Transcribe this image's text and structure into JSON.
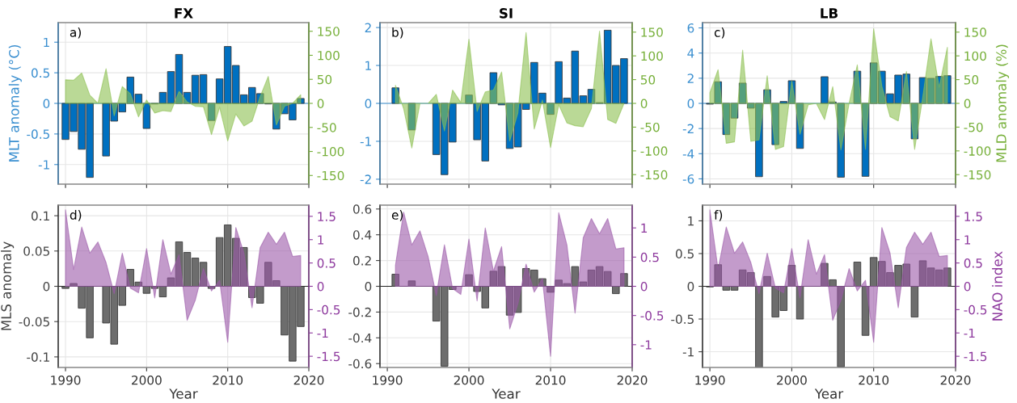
{
  "chart_data": [
    {
      "type": "bar",
      "title": "FX",
      "ylabel": "MLT anomaly (°C)",
      "annotations": [
        "a)"
      ],
      "grid": true,
      "tick_labels": "y",
      "ref_lines": [
        {
          "axis": "y",
          "value": 0,
          "color": "#3a8fd0"
        }
      ],
      "x": [
        1990,
        1991,
        1992,
        1993,
        1994,
        1995,
        1996,
        1997,
        1998,
        1999,
        2000,
        2001,
        2002,
        2003,
        2004,
        2005,
        2006,
        2007,
        2008,
        2009,
        2010,
        2011,
        2012,
        2013,
        2014,
        2015,
        2016,
        2017,
        2018,
        2019
      ],
      "xlim": [
        1989.1,
        2020
      ],
      "xticks": [
        1990,
        2000,
        2010,
        2020
      ],
      "ylim": [
        -1.32,
        1.32
      ],
      "yticks": [
        -1,
        -0.5,
        0,
        0.5,
        1
      ],
      "y2lim": [
        -168,
        168
      ],
      "y2ticks": [
        -150,
        -100,
        -50,
        0,
        50,
        100,
        150
      ],
      "series": [
        {
          "color": "#0070c0",
          "values": [
            -0.59,
            -0.46,
            -0.75,
            -1.21,
            null,
            -0.86,
            -0.29,
            -0.14,
            0.43,
            0.15,
            -0.41,
            -0.01,
            0.18,
            0.52,
            0.8,
            0.18,
            0.46,
            0.47,
            -0.28,
            0.4,
            0.93,
            0.62,
            0.14,
            0.26,
            0.16,
            -0.01,
            -0.42,
            -0.17,
            -0.27,
            0.08
          ]
        },
        {
          "type": "area",
          "axis": "y2",
          "color": "#8cbf50",
          "values": [
            49,
            48,
            63,
            17,
            0,
            72,
            -26,
            35,
            20,
            -28,
            7,
            -20,
            -15,
            -17,
            25,
            3,
            -6,
            -7,
            -65,
            -8,
            -78,
            -22,
            -47,
            -37,
            14,
            56,
            -45,
            -6,
            0,
            18
          ]
        }
      ]
    },
    {
      "type": "bar",
      "title": "SI",
      "annotations": [
        "b)"
      ],
      "grid": true,
      "tick_labels": "y",
      "ref_lines": [
        {
          "axis": "y",
          "value": 0,
          "color": "#3a8fd0"
        }
      ],
      "x": [
        1991,
        1992,
        1993,
        1994,
        1995,
        1996,
        1997,
        1998,
        1999,
        2000,
        2001,
        2002,
        2003,
        2004,
        2005,
        2006,
        2007,
        2008,
        2009,
        2010,
        2011,
        2012,
        2013,
        2014,
        2015,
        2016,
        2017,
        2018,
        2019
      ],
      "xlim": [
        1989.1,
        2020
      ],
      "xticks": [
        1990,
        2000,
        2010,
        2020
      ],
      "ylim": [
        -2.13,
        2.13
      ],
      "yticks": [
        -2,
        -1,
        0,
        1,
        2
      ],
      "y2lim": [
        -170,
        170
      ],
      "y2ticks": [
        -150,
        -100,
        -50,
        0,
        50,
        100,
        150
      ],
      "series": [
        {
          "color": "#0070c0",
          "values": [
            0.41,
            null,
            -0.7,
            null,
            null,
            -1.35,
            -1.88,
            -1.02,
            null,
            0.22,
            -0.96,
            -1.52,
            0.81,
            -0.04,
            -1.19,
            -1.15,
            -0.16,
            1.08,
            0.27,
            -0.29,
            1.1,
            0.14,
            1.38,
            0.2,
            0.37,
            0.02,
            1.93,
            1.0,
            1.18
          ]
        },
        {
          "type": "area",
          "axis": "y2",
          "color": "#8cbf50",
          "values": [
            38,
            -11,
            -94,
            0,
            0,
            19,
            -58,
            28,
            2,
            135,
            -17,
            24,
            28,
            66,
            -79,
            -20,
            149,
            -54,
            7,
            -93,
            -3,
            -41,
            -47,
            -49,
            -11,
            152,
            -34,
            -42,
            0
          ]
        }
      ]
    },
    {
      "type": "bar",
      "title": "LB",
      "y2label": "MLD anomaly (%)",
      "annotations": [
        "c)"
      ],
      "grid": true,
      "tick_labels": "y",
      "ref_lines": [
        {
          "axis": "y",
          "value": 0,
          "color": "#3a8fd0"
        }
      ],
      "x": [
        1990,
        1991,
        1992,
        1993,
        1994,
        1995,
        1996,
        1997,
        1998,
        1999,
        2000,
        2001,
        2002,
        2003,
        2004,
        2005,
        2006,
        2007,
        2008,
        2009,
        2010,
        2011,
        2012,
        2013,
        2014,
        2015,
        2016,
        2017,
        2018,
        2019
      ],
      "xlim": [
        1989.1,
        2020
      ],
      "xticks": [
        1990,
        2000,
        2010,
        2020
      ],
      "ylim": [
        -6.42,
        6.42
      ],
      "yticks": [
        -6,
        -4,
        -2,
        0,
        2,
        4,
        6
      ],
      "y2lim": [
        -170,
        170
      ],
      "y2ticks": [
        -150,
        -100,
        -50,
        0,
        50,
        100,
        150
      ],
      "series": [
        {
          "color": "#0070c0",
          "values": [
            -0.06,
            1.72,
            -2.48,
            -1.17,
            1.61,
            -0.38,
            -5.83,
            1.08,
            -3.28,
            0.15,
            1.8,
            -3.58,
            null,
            null,
            2.12,
            0.11,
            -5.87,
            null,
            2.56,
            -5.8,
            3.22,
            2.56,
            0.76,
            2.25,
            2.33,
            -2.82,
            2.05,
            1.99,
            2.14,
            2.2
          ]
        },
        {
          "type": "area",
          "axis": "y2",
          "color": "#8cbf50",
          "values": [
            22,
            71,
            -84,
            -81,
            112,
            -80,
            -77,
            58,
            -97,
            -91,
            48,
            -65,
            -3,
            0,
            -34,
            35,
            -98,
            0,
            81,
            -97,
            157,
            36,
            -28,
            -37,
            67,
            -97,
            14,
            136,
            34,
            118
          ]
        }
      ]
    },
    {
      "type": "bar",
      "ylabel": "MLS anomaly",
      "xlabel": "Year",
      "annotations": [
        "d)"
      ],
      "grid": true,
      "ref_lines": [
        {
          "axis": "y",
          "value": 0,
          "color": "#222222"
        }
      ],
      "x": [
        1990,
        1991,
        1992,
        1993,
        1994,
        1995,
        1996,
        1997,
        1998,
        1999,
        2000,
        2001,
        2002,
        2003,
        2004,
        2005,
        2006,
        2007,
        2008,
        2009,
        2010,
        2011,
        2012,
        2013,
        2014,
        2015,
        2016,
        2017,
        2018,
        2019
      ],
      "xlim": [
        1989.1,
        2020
      ],
      "xticks": [
        1990,
        2000,
        2010,
        2020
      ],
      "ylim": [
        -0.115,
        0.115
      ],
      "yticks": [
        -0.1,
        -0.05,
        0,
        0.05,
        0.1
      ],
      "y2lim": [
        -1.74,
        1.74
      ],
      "y2ticks": [
        -1.5,
        -1,
        -0.5,
        0,
        0.5,
        1,
        1.5
      ],
      "series": [
        {
          "color": "#6d6d6d",
          "values": [
            -0.003,
            0.004,
            -0.031,
            -0.073,
            null,
            -0.052,
            -0.082,
            -0.027,
            0.024,
            0.006,
            -0.01,
            -0.003,
            -0.015,
            0.012,
            0.063,
            0.048,
            0.04,
            0.034,
            -0.003,
            0.069,
            0.087,
            0.068,
            0.055,
            -0.016,
            -0.024,
            0.034,
            0.008,
            -0.069,
            -0.106,
            -0.057
          ]
        },
        {
          "type": "area",
          "axis": "y2",
          "color": "#9b59a8",
          "values": [
            1.64,
            0.36,
            1.27,
            0.71,
            0.95,
            0.51,
            -0.16,
            0.71,
            -0.04,
            -0.14,
            0.81,
            -0.25,
            1.0,
            0.26,
            0.68,
            -0.73,
            -0.3,
            0.38,
            -0.1,
            0.13,
            -1.2,
            1.26,
            0.71,
            -0.46,
            0.83,
            1.16,
            0.9,
            1.16,
            0.64,
            0.66
          ]
        }
      ]
    },
    {
      "type": "bar",
      "xlabel": "Year",
      "annotations": [
        "e)"
      ],
      "grid": true,
      "ref_lines": [
        {
          "axis": "y",
          "value": 0,
          "color": "#222222"
        }
      ],
      "x": [
        1991,
        1992,
        1993,
        1994,
        1995,
        1996,
        1997,
        1998,
        1999,
        2000,
        2001,
        2002,
        2003,
        2004,
        2005,
        2006,
        2007,
        2008,
        2009,
        2010,
        2011,
        2012,
        2013,
        2014,
        2015,
        2016,
        2017,
        2018,
        2019
      ],
      "xlim": [
        1989.1,
        2020
      ],
      "xticks": [
        1990,
        2000,
        2010,
        2020
      ],
      "ylim": [
        -0.63,
        0.63
      ],
      "yticks": [
        -0.6,
        -0.4,
        -0.2,
        0,
        0.2,
        0.4,
        0.6
      ],
      "y2lim": [
        -1.39,
        1.39
      ],
      "y2ticks": [
        -1,
        -0.5,
        0,
        0.5,
        1
      ],
      "series": [
        {
          "color": "#6d6d6d",
          "values": [
            0.094,
            null,
            0.042,
            null,
            null,
            -0.27,
            -0.62,
            -0.025,
            null,
            0.09,
            -0.04,
            -0.168,
            0.117,
            0.153,
            -0.224,
            -0.203,
            0.138,
            0.126,
            0.059,
            -0.046,
            0.048,
            0.021,
            0.153,
            0.034,
            0.126,
            0.153,
            0.115,
            -0.057,
            0.099
          ]
        },
        {
          "type": "area",
          "axis": "y2",
          "color": "#9b59a8",
          "values": [
            0.36,
            1.27,
            0.71,
            0.95,
            0.51,
            -0.16,
            0.71,
            -0.04,
            -0.14,
            0.81,
            -0.25,
            1.0,
            0.26,
            0.68,
            -0.73,
            -0.3,
            0.38,
            -0.1,
            0.13,
            -1.2,
            1.26,
            0.71,
            -0.46,
            0.83,
            1.16,
            0.9,
            1.16,
            0.64,
            0.66
          ]
        }
      ]
    },
    {
      "type": "bar",
      "xlabel": "Year",
      "y2label": "NAO index",
      "annotations": [
        "f)"
      ],
      "grid": true,
      "ref_lines": [
        {
          "axis": "y",
          "value": 0,
          "color": "#222222"
        }
      ],
      "x": [
        1990,
        1991,
        1992,
        1993,
        1994,
        1995,
        1996,
        1997,
        1998,
        1999,
        2000,
        2001,
        2002,
        2003,
        2004,
        2005,
        2006,
        2007,
        2008,
        2009,
        2010,
        2011,
        2012,
        2013,
        2014,
        2015,
        2016,
        2017,
        2018,
        2019
      ],
      "xlim": [
        1989.1,
        2020
      ],
      "xticks": [
        1990,
        2000,
        2010,
        2020
      ],
      "ylim": [
        -1.24,
        1.24
      ],
      "yticks": [
        -1,
        -0.5,
        0,
        0.5,
        1
      ],
      "y2lim": [
        -1.74,
        1.74
      ],
      "y2ticks": [
        -1.5,
        -1,
        -0.5,
        0,
        0.5,
        1,
        1.5
      ],
      "series": [
        {
          "color": "#6d6d6d",
          "values": [
            -0.01,
            0.33,
            -0.06,
            -0.06,
            0.25,
            0.21,
            -1.24,
            0.15,
            -0.47,
            -0.37,
            0.32,
            -0.5,
            null,
            null,
            0.35,
            0.1,
            -1.23,
            null,
            0.37,
            -0.75,
            0.44,
            0.38,
            0.21,
            0.32,
            0.34,
            -0.47,
            0.39,
            0.28,
            0.25,
            0.28
          ]
        },
        {
          "type": "area",
          "axis": "y2",
          "color": "#9b59a8",
          "values": [
            1.64,
            0.36,
            1.27,
            0.71,
            0.95,
            0.51,
            -0.16,
            0.71,
            -0.04,
            -0.14,
            0.81,
            -0.25,
            1.0,
            0.26,
            0.68,
            -0.73,
            -0.3,
            0.38,
            -0.1,
            0.13,
            -1.2,
            1.26,
            0.71,
            -0.46,
            0.83,
            1.16,
            0.9,
            1.16,
            0.64,
            0.66
          ]
        }
      ]
    }
  ]
}
